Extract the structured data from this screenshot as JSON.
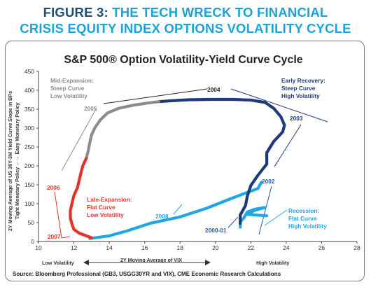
{
  "figure": {
    "label": "FIGURE 3:",
    "title_line1": "THE TECH WRECK TO FINANCIAL",
    "title_line2": "CRISIS EQUITY INDEX OPTIONS VOLATILITY CYCLE"
  },
  "chart_data": {
    "type": "line",
    "title": "S&P 500® Option Volatility-Yield Curve Cycle",
    "xlabel": "2Y Moving Average of VIX",
    "ylabel_line1": "2Y Moving Average of US 30Y-3M Yield Curve Slope in BPs",
    "ylabel_line2": "Tight Monetary Policy ←→ Easy Monetary Policy",
    "xlim": [
      10,
      28
    ],
    "ylim": [
      0,
      450
    ],
    "xticks": [
      "10",
      "12",
      "14",
      "16",
      "18",
      "20",
      "22",
      "24",
      "26",
      "28"
    ],
    "yticks": [
      "0",
      "50",
      "100",
      "150",
      "200",
      "250",
      "300",
      "350",
      "400",
      "450"
    ],
    "grid": false,
    "x_end_labels": {
      "left": "Low Volatility",
      "right": "High Volatility"
    },
    "colors": {
      "recession": "#1ea7e3",
      "early_recovery": "#1f3a78",
      "mid_expansion": "#8c8c8c",
      "late_expansion": "#e0342b"
    },
    "series": [
      {
        "phase": "recession",
        "color": "#1ea7e3",
        "points": [
          [
            12.9,
            8
          ],
          [
            14.0,
            15
          ],
          [
            15.0,
            28
          ],
          [
            16.3,
            48
          ],
          [
            18.0,
            65
          ],
          [
            19.5,
            88
          ],
          [
            20.8,
            112
          ],
          [
            21.8,
            130
          ],
          [
            22.4,
            140
          ],
          [
            22.6,
            157
          ]
        ]
      },
      {
        "phase": "recession",
        "color": "#1ea7e3",
        "points": [
          [
            21.4,
            38
          ],
          [
            21.4,
            52
          ],
          [
            21.6,
            62
          ],
          [
            21.8,
            78
          ],
          [
            22.2,
            85
          ],
          [
            22.8,
            90
          ],
          [
            22.2,
            82
          ],
          [
            21.8,
            72
          ],
          [
            22.3,
            70
          ],
          [
            22.9,
            68
          ]
        ]
      },
      {
        "phase": "early_recovery",
        "color": "#1f3a78",
        "points": [
          [
            21.4,
            48
          ],
          [
            21.4,
            70
          ],
          [
            21.7,
            95
          ],
          [
            21.8,
            120
          ],
          [
            22.0,
            148
          ],
          [
            22.4,
            175
          ],
          [
            22.9,
            205
          ],
          [
            22.9,
            235
          ],
          [
            23.3,
            265
          ],
          [
            23.8,
            290
          ],
          [
            23.9,
            308
          ],
          [
            23.7,
            330
          ],
          [
            23.3,
            352
          ],
          [
            22.8,
            368
          ],
          [
            22.0,
            374
          ],
          [
            21.0,
            376
          ],
          [
            19.8,
            376
          ],
          [
            18.5,
            375
          ],
          [
            17.4,
            372
          ],
          [
            16.8,
            370
          ]
        ]
      },
      {
        "phase": "mid_expansion",
        "color": "#8c8c8c",
        "points": [
          [
            16.8,
            370
          ],
          [
            16.1,
            366
          ],
          [
            15.3,
            360
          ],
          [
            14.5,
            352
          ],
          [
            13.9,
            340
          ],
          [
            13.5,
            322
          ],
          [
            13.2,
            302
          ],
          [
            13.0,
            282
          ],
          [
            12.9,
            262
          ],
          [
            12.8,
            238
          ],
          [
            12.7,
            220
          ]
        ]
      },
      {
        "phase": "late_expansion",
        "color": "#e0342b",
        "points": [
          [
            12.7,
            220
          ],
          [
            12.5,
            200
          ],
          [
            12.4,
            182
          ],
          [
            12.3,
            162
          ],
          [
            12.2,
            142
          ],
          [
            12.0,
            122
          ],
          [
            11.9,
            102
          ],
          [
            11.8,
            82
          ],
          [
            11.8,
            62
          ],
          [
            11.9,
            45
          ],
          [
            12.0,
            32
          ],
          [
            12.3,
            22
          ],
          [
            12.7,
            15
          ],
          [
            13.0,
            10
          ]
        ]
      }
    ],
    "annotations": {
      "mid_expansion": {
        "line1": "Mid-Expansion:",
        "line2": "Steep Curve",
        "line3": "Low Volatility",
        "color": "#8c8c8c"
      },
      "early_recovery": {
        "line1": "Early Recovery:",
        "line2": "Steep Curve",
        "line3": "High Volatility",
        "color": "#1f3a78"
      },
      "late_expansion": {
        "line1": "Late-Expansion:",
        "line2": "Flat Curve",
        "line3": "Low Volatility",
        "color": "#e0342b"
      },
      "recession": {
        "line1": "Recession:",
        "line2": "Flat Curve",
        "line3": "High Volatility",
        "color": "#1ea7e3"
      }
    },
    "year_labels": {
      "y2004": {
        "text": "2004",
        "color": "#222222"
      },
      "y2005": {
        "text": "2005",
        "color": "#8c8c8c"
      },
      "y2003": {
        "text": "2003",
        "color": "#1f3a78"
      },
      "y2006": {
        "text": "2006",
        "color": "#e0342b"
      },
      "y2007": {
        "text": "2007",
        "color": "#e0342b"
      },
      "y2008": {
        "text": "2008",
        "color": "#1ea7e3"
      },
      "y2002": {
        "text": "2002",
        "color": "#1f5aa8"
      },
      "y2000": {
        "text": "2000-01",
        "color": "#1f5aa8"
      }
    },
    "source": "Source: Bloomberg Professional (GB3, USGG30YR and VIX), CME Economic Research Calculations"
  }
}
